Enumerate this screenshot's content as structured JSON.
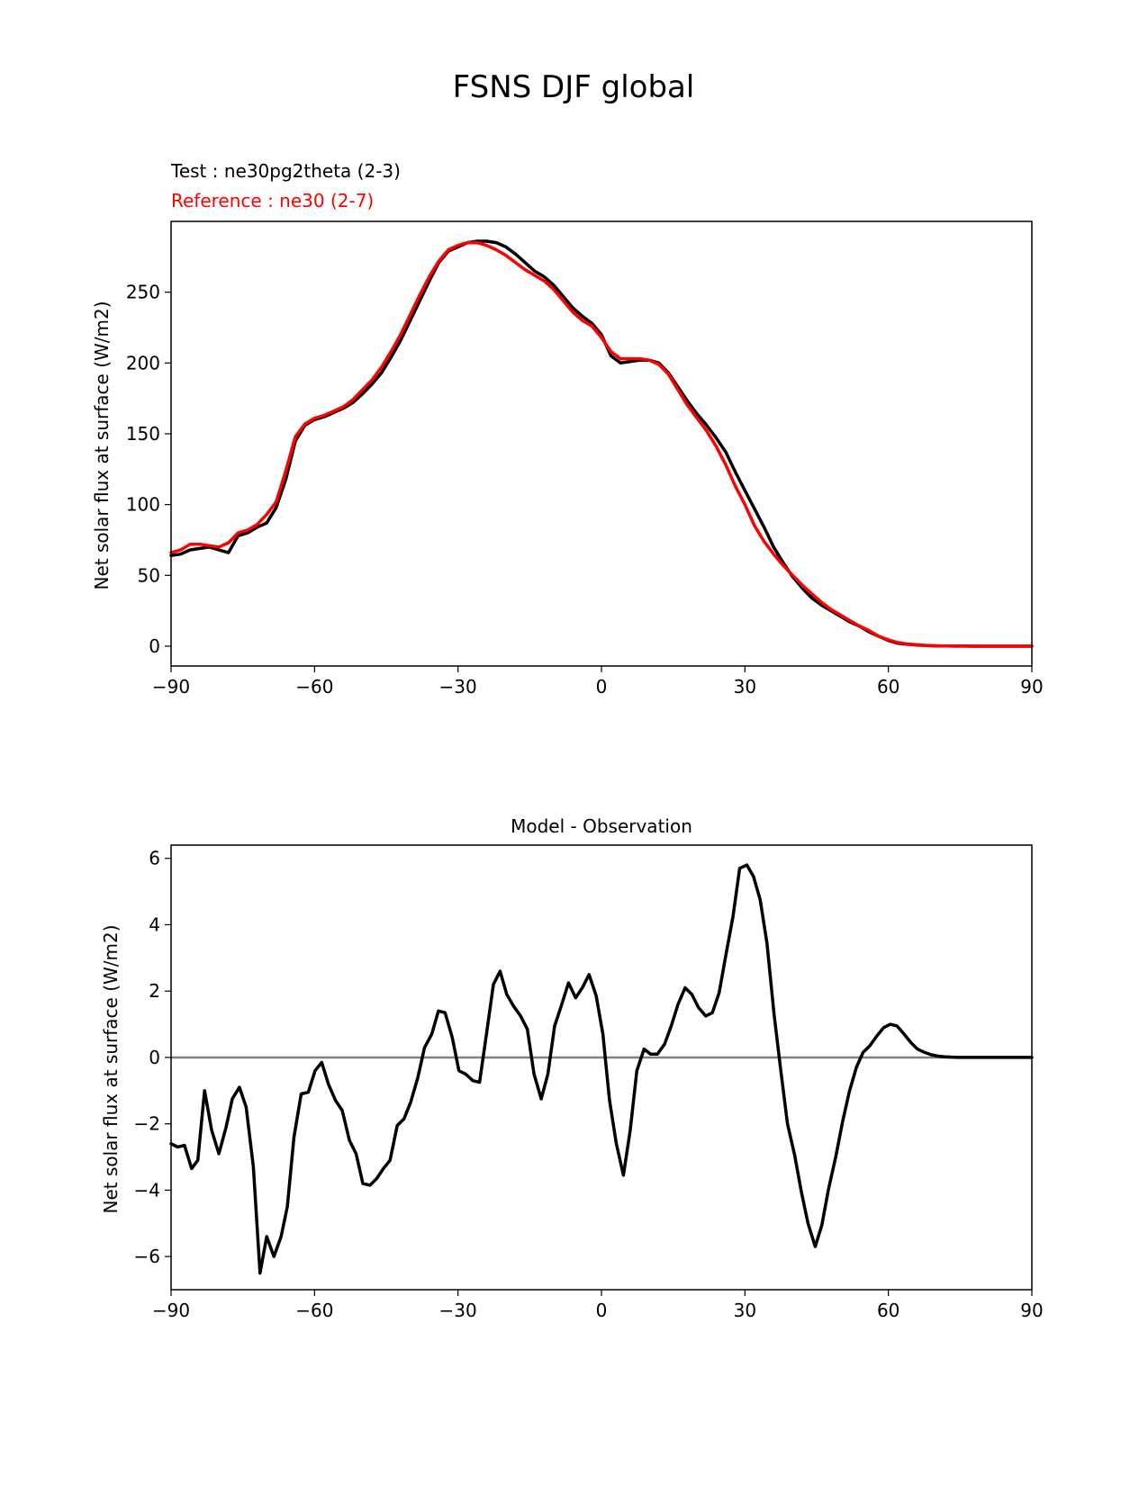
{
  "figure": {
    "title": "FSNS DJF global"
  },
  "chart_data": [
    {
      "type": "line",
      "legend": {
        "test": "Test : ne30pg2theta (2-3)",
        "reference": "Reference : ne30 (2-7)"
      },
      "title": "",
      "xlabel": "",
      "ylabel": "Net solar flux at surface (W/m2)",
      "xlim": [
        -90,
        90
      ],
      "ylim": [
        -14,
        300
      ],
      "xticks": [
        -90,
        -60,
        -30,
        0,
        30,
        60,
        90
      ],
      "xtick_labels": [
        "−90",
        "−60",
        "−30",
        "0",
        "30",
        "60",
        "90"
      ],
      "yticks": [
        0,
        50,
        100,
        150,
        200,
        250
      ],
      "ytick_labels": [
        "0",
        "50",
        "100",
        "150",
        "200",
        "250"
      ],
      "series": [
        {
          "name": "Test",
          "color": "#000000",
          "x": [
            -90,
            -88,
            -86,
            -84,
            -82,
            -80,
            -78,
            -76,
            -74,
            -72,
            -70,
            -68,
            -66,
            -64,
            -62,
            -60,
            -58,
            -56,
            -54,
            -52,
            -50,
            -48,
            -46,
            -44,
            -42,
            -40,
            -38,
            -36,
            -34,
            -32,
            -30,
            -28,
            -26,
            -24,
            -22,
            -20,
            -18,
            -16,
            -14,
            -12,
            -10,
            -8,
            -6,
            -4,
            -2,
            0,
            2,
            4,
            6,
            8,
            10,
            12,
            14,
            16,
            18,
            20,
            22,
            24,
            26,
            28,
            30,
            32,
            34,
            36,
            38,
            40,
            42,
            44,
            46,
            48,
            50,
            52,
            54,
            56,
            58,
            60,
            62,
            64,
            66,
            68,
            70,
            72,
            74,
            76,
            78,
            80,
            82,
            84,
            86,
            88,
            90
          ],
          "y": [
            64,
            65,
            68,
            69,
            70,
            68,
            66,
            78,
            80,
            84,
            87,
            98,
            118,
            145,
            156,
            160,
            162,
            165,
            168,
            172,
            178,
            185,
            193,
            204,
            216,
            230,
            244,
            258,
            271,
            279,
            282,
            285,
            286,
            286,
            285,
            282,
            277,
            271,
            265,
            261,
            255,
            247,
            239,
            233,
            228,
            220,
            205,
            200,
            201,
            202,
            202,
            200,
            193,
            183,
            173,
            164,
            156,
            147,
            137,
            123,
            110,
            97,
            84,
            70,
            59,
            49,
            41,
            34,
            29,
            25,
            21,
            17,
            14,
            10,
            7,
            4,
            2,
            1.3,
            0.8,
            0.4,
            0.2,
            0.1,
            0.05,
            0.02,
            0.01,
            0,
            0,
            0,
            0,
            0,
            0
          ]
        },
        {
          "name": "Reference",
          "color": "#ff0000",
          "x": [
            -90,
            -88,
            -86,
            -84,
            -82,
            -80,
            -78,
            -76,
            -74,
            -72,
            -70,
            -68,
            -66,
            -64,
            -62,
            -60,
            -58,
            -56,
            -54,
            -52,
            -50,
            -48,
            -46,
            -44,
            -42,
            -40,
            -38,
            -36,
            -34,
            -32,
            -30,
            -28,
            -26,
            -24,
            -22,
            -20,
            -18,
            -16,
            -14,
            -12,
            -10,
            -8,
            -6,
            -4,
            -2,
            0,
            2,
            4,
            6,
            8,
            10,
            12,
            14,
            16,
            18,
            20,
            22,
            24,
            26,
            28,
            30,
            32,
            34,
            36,
            38,
            40,
            42,
            44,
            46,
            48,
            50,
            52,
            54,
            56,
            58,
            60,
            62,
            64,
            66,
            68,
            70,
            72,
            74,
            76,
            78,
            80,
            82,
            84,
            86,
            88,
            90
          ],
          "y": [
            66,
            68,
            72,
            72,
            71,
            70,
            73,
            80,
            82,
            86,
            93,
            102,
            124,
            148,
            157,
            161,
            163,
            166,
            169,
            174,
            181,
            188,
            197,
            208,
            220,
            234,
            248,
            261,
            272,
            280,
            283,
            285,
            285,
            283,
            280,
            276,
            271,
            266,
            262,
            258,
            252,
            244,
            236,
            230,
            226,
            218,
            208,
            203,
            203,
            203,
            202,
            199,
            192,
            181,
            170,
            161,
            152,
            141,
            128,
            113,
            100,
            85,
            74,
            65,
            57,
            50,
            43,
            37,
            31,
            26,
            22,
            18,
            14,
            11,
            7,
            4.5,
            2.5,
            1.5,
            1,
            0.5,
            0.3,
            0.15,
            0.05,
            0.02,
            0.01,
            0,
            0,
            0,
            0,
            0,
            0
          ]
        }
      ]
    },
    {
      "type": "line",
      "title": "Model - Observation",
      "xlabel": "",
      "ylabel": "Net solar flux at surface (W/m2)",
      "xlim": [
        -90,
        90
      ],
      "ylim": [
        -7,
        6.4
      ],
      "xticks": [
        -90,
        -60,
        -30,
        0,
        30,
        60,
        90
      ],
      "xtick_labels": [
        "−90",
        "−60",
        "−30",
        "0",
        "30",
        "60",
        "90"
      ],
      "yticks": [
        -6,
        -4,
        -2,
        0,
        2,
        4,
        6
      ],
      "ytick_labels": [
        "−6",
        "−4",
        "−2",
        "0",
        "2",
        "4",
        "6"
      ],
      "zero_line_color": "#808080",
      "series": [
        {
          "name": "Model - Observation",
          "color": "#000000",
          "x": [
            -90,
            -88.6,
            -87.2,
            -85.7,
            -84.4,
            -83,
            -81.5,
            -80,
            -78.5,
            -77.2,
            -75.7,
            -74.3,
            -72.8,
            -71.4,
            -70,
            -68.5,
            -67,
            -65.7,
            -64.3,
            -62.8,
            -61.3,
            -59.9,
            -58.5,
            -57.1,
            -55.6,
            -54.2,
            -52.7,
            -51.3,
            -49.9,
            -48.4,
            -47,
            -45.6,
            -44.2,
            -42.7,
            -41.3,
            -39.9,
            -38.4,
            -37,
            -35.5,
            -34.1,
            -32.7,
            -31.2,
            -29.8,
            -28.4,
            -26.9,
            -25.5,
            -24.1,
            -22.6,
            -21.2,
            -19.8,
            -18.4,
            -16.9,
            -15.5,
            -14.1,
            -12.6,
            -11.2,
            -9.8,
            -8.3,
            -6.9,
            -5.4,
            -4,
            -2.6,
            -1.1,
            0.3,
            1.7,
            3.1,
            4.6,
            6,
            7.4,
            8.9,
            10.3,
            11.7,
            13.2,
            14.6,
            16,
            17.5,
            18.9,
            20.3,
            21.8,
            23.2,
            24.6,
            26.1,
            27.5,
            28.9,
            30.4,
            31.8,
            33.2,
            34.6,
            36.1,
            37.5,
            38.9,
            40.4,
            41.8,
            43.2,
            44.7,
            46.1,
            47.5,
            49,
            50.4,
            51.8,
            53.3,
            54.7,
            56.1,
            57.6,
            59,
            60.4,
            61.8,
            63.3,
            64.7,
            66.1,
            67.6,
            69,
            70.4,
            71.9,
            73.3,
            74.7,
            76.2,
            77.6,
            79,
            80.4,
            81.9,
            83.3,
            84.7,
            86.2,
            87.6,
            90
          ],
          "y": [
            -2.6,
            -2.7,
            -2.65,
            -3.35,
            -3.1,
            -1,
            -2.2,
            -2.9,
            -2.1,
            -1.25,
            -0.9,
            -1.5,
            -3.3,
            -6.5,
            -5.4,
            -6,
            -5.4,
            -4.5,
            -2.4,
            -1.1,
            -1.05,
            -0.4,
            -0.15,
            -0.8,
            -1.3,
            -1.6,
            -2.5,
            -2.9,
            -3.8,
            -3.85,
            -3.65,
            -3.35,
            -3.1,
            -2.05,
            -1.85,
            -1.35,
            -0.6,
            0.3,
            0.7,
            1.4,
            1.35,
            0.6,
            -0.4,
            -0.5,
            -0.7,
            -0.75,
            0.65,
            2.2,
            2.6,
            1.9,
            1.55,
            1.25,
            0.85,
            -0.5,
            -1.25,
            -0.5,
            0.95,
            1.6,
            2.25,
            1.8,
            2.1,
            2.5,
            1.85,
            0.7,
            -1.3,
            -2.6,
            -3.55,
            -2.2,
            -0.4,
            0.25,
            0.1,
            0.1,
            0.4,
            0.95,
            1.6,
            2.1,
            1.9,
            1.5,
            1.25,
            1.35,
            1.95,
            3.15,
            4.25,
            5.7,
            5.8,
            5.45,
            4.75,
            3.45,
            1.3,
            -0.4,
            -2,
            -2.95,
            -4.05,
            -5,
            -5.7,
            -5.05,
            -3.95,
            -3,
            -1.95,
            -1.05,
            -0.3,
            0.15,
            0.35,
            0.65,
            0.9,
            1,
            0.95,
            0.7,
            0.45,
            0.25,
            0.15,
            0.08,
            0.04,
            0.02,
            0.01,
            0,
            0,
            0,
            0,
            0,
            0,
            0,
            0,
            0,
            0,
            0
          ]
        }
      ]
    }
  ]
}
